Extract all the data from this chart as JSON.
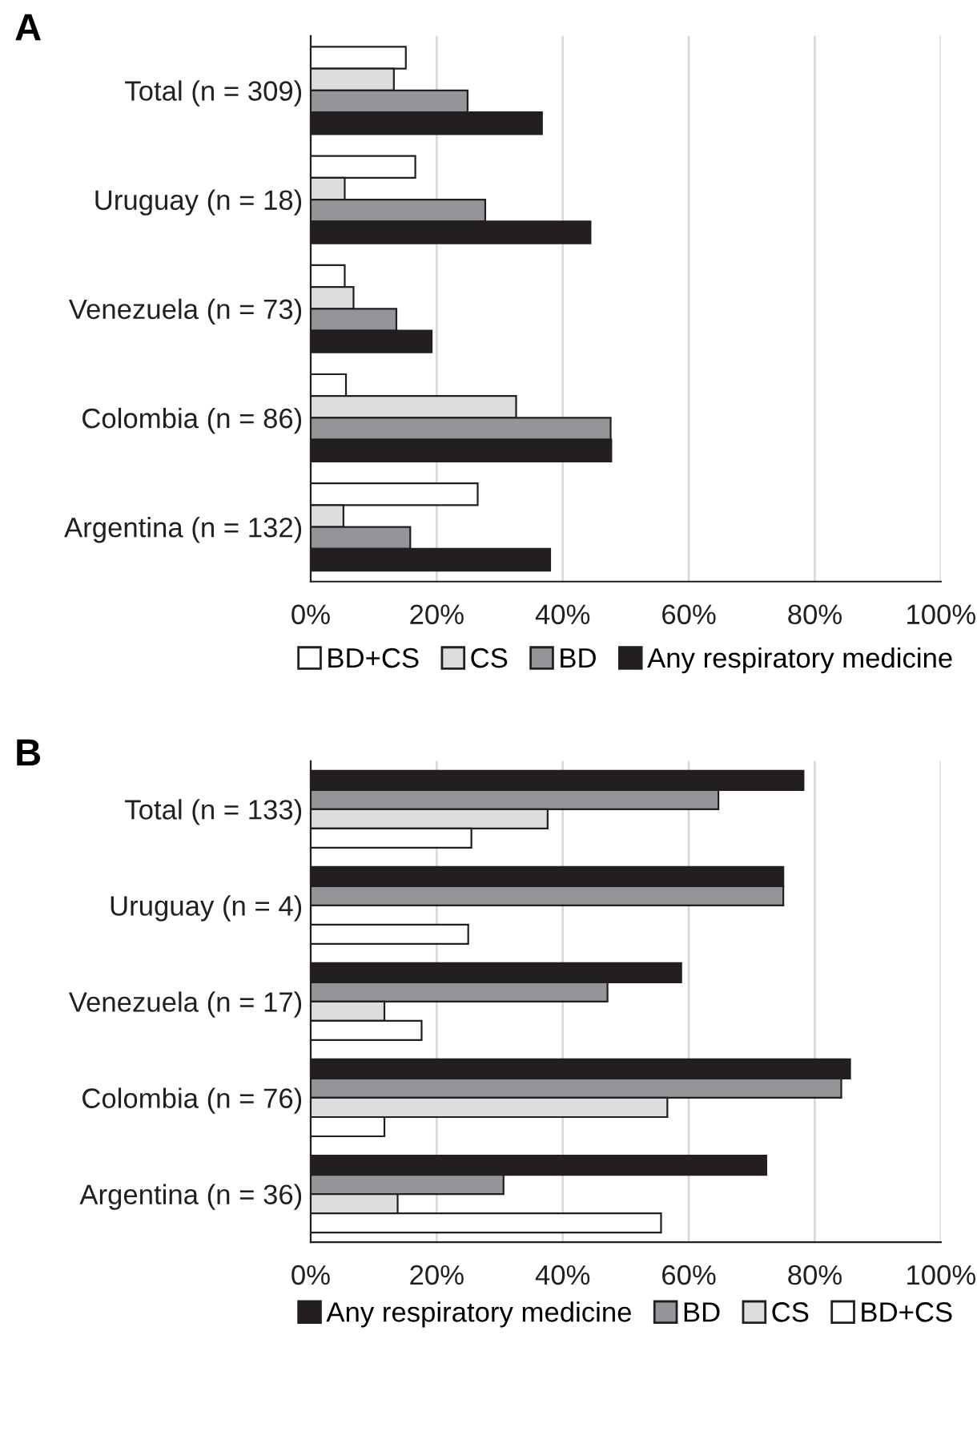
{
  "chart_data": [
    {
      "type": "bar",
      "orientation": "horizontal",
      "title": "A",
      "categories": [
        "Total (n = 309)",
        "Uruguay (n = 18)",
        "Venezuela (n = 73)",
        "Colombia (n = 86)",
        "Argentina (n = 132)"
      ],
      "series": [
        {
          "name": "BD+CS",
          "color": "#ffffff",
          "values": [
            15.1,
            16.6,
            5.4,
            5.6,
            26.5
          ]
        },
        {
          "name": "CS",
          "color": "#dcdddf",
          "values": [
            13.2,
            5.4,
            6.8,
            32.6,
            5.2
          ]
        },
        {
          "name": "BD",
          "color": "#939598",
          "values": [
            24.9,
            27.7,
            13.6,
            47.6,
            15.8
          ]
        },
        {
          "name": "Any respiratory medicine",
          "color": "#231f20",
          "values": [
            36.7,
            44.4,
            19.2,
            47.7,
            38.0
          ]
        }
      ],
      "xlim": [
        0,
        100
      ],
      "xticks": [
        {
          "value": 0,
          "label": "0%"
        },
        {
          "value": 20,
          "label": "20%"
        },
        {
          "value": 40,
          "label": "40%"
        },
        {
          "value": 60,
          "label": "60%"
        },
        {
          "value": 80,
          "label": "80%"
        },
        {
          "value": 100,
          "label": "100%"
        }
      ],
      "grid": "x",
      "legend": "bottom"
    },
    {
      "type": "bar",
      "orientation": "horizontal",
      "title": "B",
      "categories": [
        "Total (n = 133)",
        "Uruguay (n = 4)",
        "Venezuela (n = 17)",
        "Colombia (n = 76)",
        "Argentina (n = 36)"
      ],
      "series": [
        {
          "name": "Any respiratory medicine",
          "color": "#231f20",
          "values": [
            78.2,
            75.0,
            58.8,
            85.6,
            72.3
          ]
        },
        {
          "name": "BD",
          "color": "#939598",
          "values": [
            64.7,
            75.0,
            47.1,
            84.2,
            30.6
          ]
        },
        {
          "name": "CS",
          "color": "#dcdddf",
          "values": [
            37.6,
            0,
            11.7,
            56.6,
            13.8
          ]
        },
        {
          "name": "BD+CS",
          "color": "#ffffff",
          "values": [
            25.5,
            25.0,
            17.6,
            11.7,
            55.6
          ]
        }
      ],
      "xlim": [
        0,
        100
      ],
      "xticks": [
        {
          "value": 0,
          "label": "0%"
        },
        {
          "value": 20,
          "label": "20%"
        },
        {
          "value": 40,
          "label": "40%"
        },
        {
          "value": 60,
          "label": "60%"
        },
        {
          "value": 80,
          "label": "80%"
        },
        {
          "value": 100,
          "label": "100%"
        }
      ],
      "grid": "x",
      "legend": "bottom"
    }
  ]
}
